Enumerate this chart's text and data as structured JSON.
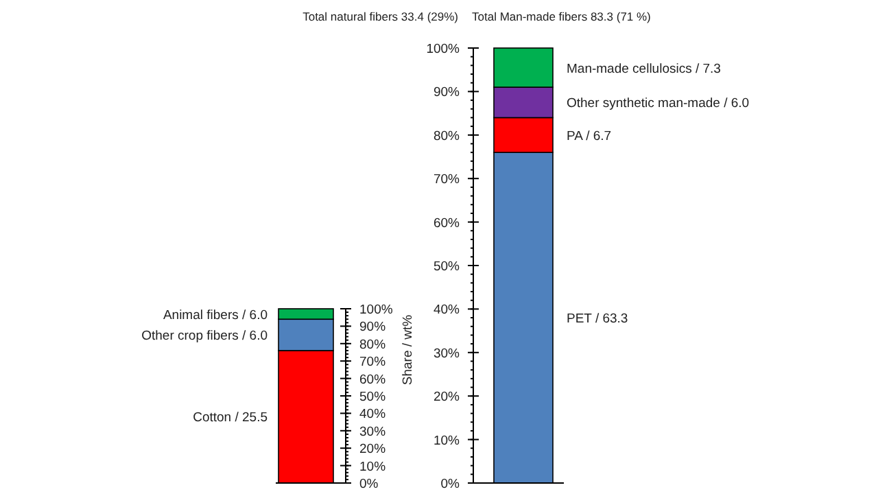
{
  "chart_data": [
    {
      "type": "bar",
      "title": "Total natural fibers 33.4 (29%)",
      "ylabel": "Share / wt%",
      "categories": [
        null
      ],
      "stacked": true,
      "legend": false,
      "series": [
        {
          "name": "Cotton / 25.5",
          "color": "#ff0000",
          "values": [
            76
          ]
        },
        {
          "name": "Other crop fibers / 6.0",
          "color": "#4f81bd",
          "values": [
            18
          ]
        },
        {
          "name": "Animal fibers / 6.0",
          "color": "#00b050",
          "values": [
            6
          ]
        }
      ],
      "ylim": [
        0,
        100
      ],
      "yticks": [
        {
          "value": 0,
          "label": "0%"
        },
        {
          "value": 10,
          "label": "10%"
        },
        {
          "value": 20,
          "label": "20%"
        },
        {
          "value": 30,
          "label": "30%"
        },
        {
          "value": 40,
          "label": "40%"
        },
        {
          "value": 50,
          "label": "50%"
        },
        {
          "value": 60,
          "label": "60%"
        },
        {
          "value": 70,
          "label": "70%"
        },
        {
          "value": 80,
          "label": "80%"
        },
        {
          "value": 90,
          "label": "90%"
        },
        {
          "value": 100,
          "label": "100%"
        }
      ]
    },
    {
      "type": "bar",
      "title": "Total Man-made fibers 83.3 (71 %)",
      "categories": [
        null
      ],
      "stacked": true,
      "legend": false,
      "series": [
        {
          "name": "PET / 63.3",
          "color": "#4f81bd",
          "values": [
            76
          ]
        },
        {
          "name": "PA / 6.7",
          "color": "#ff0000",
          "values": [
            8
          ]
        },
        {
          "name": "Other synthetic man-made / 6.0",
          "color": "#7030a0",
          "values": [
            7
          ]
        },
        {
          "name": "Man-made cellulosics / 7.3",
          "color": "#00b050",
          "values": [
            9
          ]
        }
      ],
      "ylim": [
        0,
        100
      ],
      "yticks": [
        {
          "value": 0,
          "label": "0%"
        },
        {
          "value": 10,
          "label": "10%"
        },
        {
          "value": 20,
          "label": "20%"
        },
        {
          "value": 30,
          "label": "30%"
        },
        {
          "value": 40,
          "label": "40%"
        },
        {
          "value": 50,
          "label": "50%"
        },
        {
          "value": 60,
          "label": "60%"
        },
        {
          "value": 70,
          "label": "70%"
        },
        {
          "value": 80,
          "label": "80%"
        },
        {
          "value": 90,
          "label": "90%"
        },
        {
          "value": 100,
          "label": "100%"
        }
      ]
    }
  ]
}
